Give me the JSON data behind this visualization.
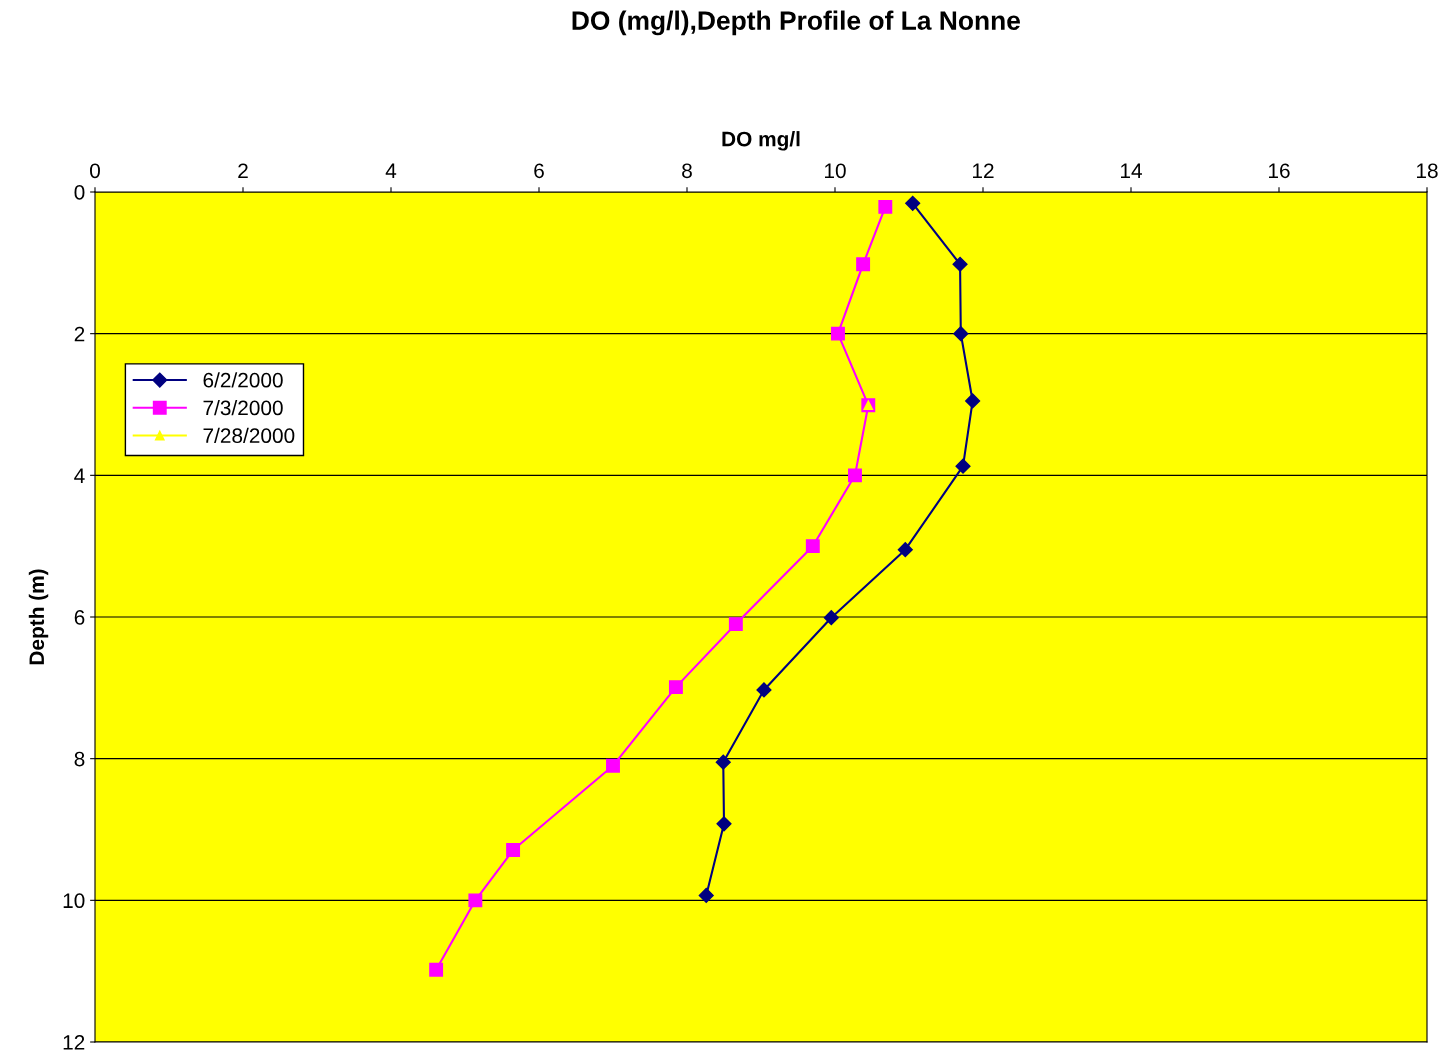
{
  "chart_data": {
    "type": "line",
    "title": "DO (mg/l),Depth Profile of La Nonne",
    "xlabel": "DO mg/l",
    "ylabel": "Depth (m)",
    "xlim": [
      0,
      18
    ],
    "xticks": [
      0,
      2,
      4,
      6,
      8,
      10,
      12,
      14,
      16,
      18
    ],
    "ylim": [
      12,
      0
    ],
    "yticks": [
      0,
      2,
      4,
      6,
      8,
      10,
      12
    ],
    "grid": "y",
    "legend": "top left",
    "line_style": "solid",
    "series": [
      {
        "name": "6/2/2000",
        "color": "#000080",
        "marker": "diamond",
        "x": [
          11.05,
          11.69,
          11.7,
          11.86,
          11.73,
          10.95,
          9.95,
          9.04,
          8.49,
          8.5,
          8.26
        ],
        "values": [
          0.16,
          1.02,
          2.0,
          2.95,
          3.87,
          5.05,
          6.01,
          7.03,
          8.05,
          8.92,
          9.93
        ]
      },
      {
        "name": "7/3/2000",
        "color": "#ff00ff",
        "marker": "square",
        "x": [
          10.68,
          10.38,
          10.04,
          10.45,
          10.27,
          9.7,
          8.66,
          7.85,
          7.0,
          5.65,
          5.14,
          4.61
        ],
        "values": [
          0.21,
          1.02,
          2.0,
          3.01,
          4.0,
          5.0,
          6.1,
          6.99,
          8.1,
          9.29,
          10.0,
          10.98
        ]
      },
      {
        "name": "7/28/2000",
        "color": "#ffff00",
        "marker": "triangle",
        "x": [
          10.45
        ],
        "values": [
          3.01
        ]
      }
    ]
  }
}
